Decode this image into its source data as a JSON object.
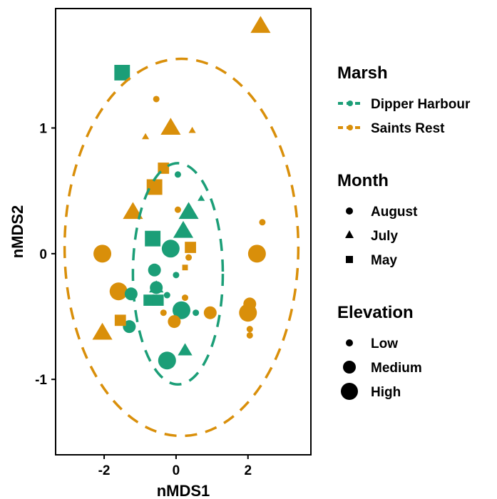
{
  "chart_data": {
    "type": "scatter",
    "xlabel": "nMDS1",
    "ylabel": "nMDS2",
    "xlim": [
      -3.35,
      3.75
    ],
    "ylim": [
      -1.6,
      1.95
    ],
    "xticks": [
      -2,
      0,
      2
    ],
    "xtick_labels": [
      "-2",
      "0",
      "2"
    ],
    "yticks": [
      -1,
      0,
      1
    ],
    "ytick_labels": [
      "-1",
      "0",
      "1"
    ],
    "grid": false,
    "legend_placement": "right",
    "colors": {
      "Dipper Harbour": "#1b9e77",
      "Saints Rest": "#d98f0a"
    },
    "shapes": {
      "August": "circle",
      "July": "triangle",
      "May": "square"
    },
    "sizes": {
      "Low": 1,
      "Medium": 2,
      "High": 3
    },
    "legends": {
      "marsh": {
        "title": "Marsh",
        "items": [
          "Dipper Harbour",
          "Saints Rest"
        ]
      },
      "month": {
        "title": "Month",
        "items": [
          "August",
          "July",
          "May"
        ]
      },
      "elevation": {
        "title": "Elevation",
        "items": [
          "Low",
          "Medium",
          "High"
        ]
      }
    },
    "ellipses": [
      {
        "marsh": "Saints Rest",
        "center": [
          0.15,
          0.05
        ],
        "rx": 3.25,
        "ry": 1.5
      },
      {
        "marsh": "Dipper Harbour",
        "center": [
          0.05,
          -0.16
        ],
        "rx": 1.25,
        "ry": 0.88
      }
    ],
    "points": [
      {
        "x": -1.5,
        "y": 1.44,
        "marsh": "Dipper Harbour",
        "month": "May",
        "elevation": "High"
      },
      {
        "x": -0.65,
        "y": 0.12,
        "marsh": "Dipper Harbour",
        "month": "May",
        "elevation": "High"
      },
      {
        "x": -0.75,
        "y": -0.37,
        "marsh": "Dipper Harbour",
        "month": "May",
        "elevation": "Medium"
      },
      {
        "x": -0.5,
        "y": -0.37,
        "marsh": "Dipper Harbour",
        "month": "May",
        "elevation": "Medium"
      },
      {
        "x": -0.15,
        "y": 0.04,
        "marsh": "Dipper Harbour",
        "month": "August",
        "elevation": "High"
      },
      {
        "x": -0.6,
        "y": -0.13,
        "marsh": "Dipper Harbour",
        "month": "August",
        "elevation": "Medium"
      },
      {
        "x": -0.55,
        "y": -0.27,
        "marsh": "Dipper Harbour",
        "month": "August",
        "elevation": "Medium"
      },
      {
        "x": 0.15,
        "y": -0.45,
        "marsh": "Dipper Harbour",
        "month": "August",
        "elevation": "High"
      },
      {
        "x": -0.25,
        "y": -0.85,
        "marsh": "Dipper Harbour",
        "month": "August",
        "elevation": "High"
      },
      {
        "x": -1.25,
        "y": -0.32,
        "marsh": "Dipper Harbour",
        "month": "August",
        "elevation": "Medium"
      },
      {
        "x": -1.3,
        "y": -0.58,
        "marsh": "Dipper Harbour",
        "month": "August",
        "elevation": "Medium"
      },
      {
        "x": 0.0,
        "y": -0.17,
        "marsh": "Dipper Harbour",
        "month": "August",
        "elevation": "Low"
      },
      {
        "x": -0.25,
        "y": -0.33,
        "marsh": "Dipper Harbour",
        "month": "August",
        "elevation": "Low"
      },
      {
        "x": 0.05,
        "y": 0.63,
        "marsh": "Dipper Harbour",
        "month": "August",
        "elevation": "Low"
      },
      {
        "x": 0.55,
        "y": -0.47,
        "marsh": "Dipper Harbour",
        "month": "August",
        "elevation": "Low"
      },
      {
        "x": 0.35,
        "y": 0.33,
        "marsh": "Dipper Harbour",
        "month": "July",
        "elevation": "High"
      },
      {
        "x": 0.2,
        "y": 0.18,
        "marsh": "Dipper Harbour",
        "month": "July",
        "elevation": "High"
      },
      {
        "x": -0.55,
        "y": -0.27,
        "marsh": "Dipper Harbour",
        "month": "July",
        "elevation": "Medium"
      },
      {
        "x": 0.25,
        "y": -0.77,
        "marsh": "Dipper Harbour",
        "month": "July",
        "elevation": "Medium"
      },
      {
        "x": 0.7,
        "y": 0.44,
        "marsh": "Dipper Harbour",
        "month": "July",
        "elevation": "Low"
      },
      {
        "x": 2.35,
        "y": 1.81,
        "marsh": "Saints Rest",
        "month": "July",
        "elevation": "High"
      },
      {
        "x": -0.15,
        "y": 1.0,
        "marsh": "Saints Rest",
        "month": "July",
        "elevation": "High"
      },
      {
        "x": -1.2,
        "y": 0.33,
        "marsh": "Saints Rest",
        "month": "July",
        "elevation": "High"
      },
      {
        "x": -2.05,
        "y": -0.63,
        "marsh": "Saints Rest",
        "month": "July",
        "elevation": "High"
      },
      {
        "x": -0.85,
        "y": 0.93,
        "marsh": "Saints Rest",
        "month": "July",
        "elevation": "Low"
      },
      {
        "x": 0.45,
        "y": 0.98,
        "marsh": "Saints Rest",
        "month": "July",
        "elevation": "Low"
      },
      {
        "x": -0.6,
        "y": 0.53,
        "marsh": "Saints Rest",
        "month": "May",
        "elevation": "High"
      },
      {
        "x": -0.35,
        "y": 0.68,
        "marsh": "Saints Rest",
        "month": "May",
        "elevation": "Medium"
      },
      {
        "x": -1.55,
        "y": -0.53,
        "marsh": "Saints Rest",
        "month": "May",
        "elevation": "Medium"
      },
      {
        "x": 0.4,
        "y": 0.05,
        "marsh": "Saints Rest",
        "month": "May",
        "elevation": "Medium"
      },
      {
        "x": 0.25,
        "y": -0.11,
        "marsh": "Saints Rest",
        "month": "May",
        "elevation": "Low"
      },
      {
        "x": -2.05,
        "y": 0.0,
        "marsh": "Saints Rest",
        "month": "August",
        "elevation": "High"
      },
      {
        "x": 2.25,
        "y": 0.0,
        "marsh": "Saints Rest",
        "month": "August",
        "elevation": "High"
      },
      {
        "x": -1.6,
        "y": -0.3,
        "marsh": "Saints Rest",
        "month": "August",
        "elevation": "High"
      },
      {
        "x": 2.0,
        "y": -0.47,
        "marsh": "Saints Rest",
        "month": "August",
        "elevation": "High"
      },
      {
        "x": 2.05,
        "y": -0.4,
        "marsh": "Saints Rest",
        "month": "August",
        "elevation": "Medium"
      },
      {
        "x": 0.95,
        "y": -0.47,
        "marsh": "Saints Rest",
        "month": "August",
        "elevation": "Medium"
      },
      {
        "x": -0.05,
        "y": -0.54,
        "marsh": "Saints Rest",
        "month": "August",
        "elevation": "Medium"
      },
      {
        "x": -0.55,
        "y": 1.23,
        "marsh": "Saints Rest",
        "month": "August",
        "elevation": "Low"
      },
      {
        "x": 0.05,
        "y": 0.35,
        "marsh": "Saints Rest",
        "month": "August",
        "elevation": "Low"
      },
      {
        "x": 2.4,
        "y": 0.25,
        "marsh": "Saints Rest",
        "month": "August",
        "elevation": "Low"
      },
      {
        "x": 0.25,
        "y": -0.35,
        "marsh": "Saints Rest",
        "month": "August",
        "elevation": "Low"
      },
      {
        "x": -0.35,
        "y": -0.47,
        "marsh": "Saints Rest",
        "month": "August",
        "elevation": "Low"
      },
      {
        "x": 2.05,
        "y": -0.6,
        "marsh": "Saints Rest",
        "month": "August",
        "elevation": "Low"
      },
      {
        "x": 2.05,
        "y": -0.65,
        "marsh": "Saints Rest",
        "month": "August",
        "elevation": "Low"
      },
      {
        "x": 0.35,
        "y": -0.03,
        "marsh": "Saints Rest",
        "month": "August",
        "elevation": "Low"
      }
    ]
  }
}
